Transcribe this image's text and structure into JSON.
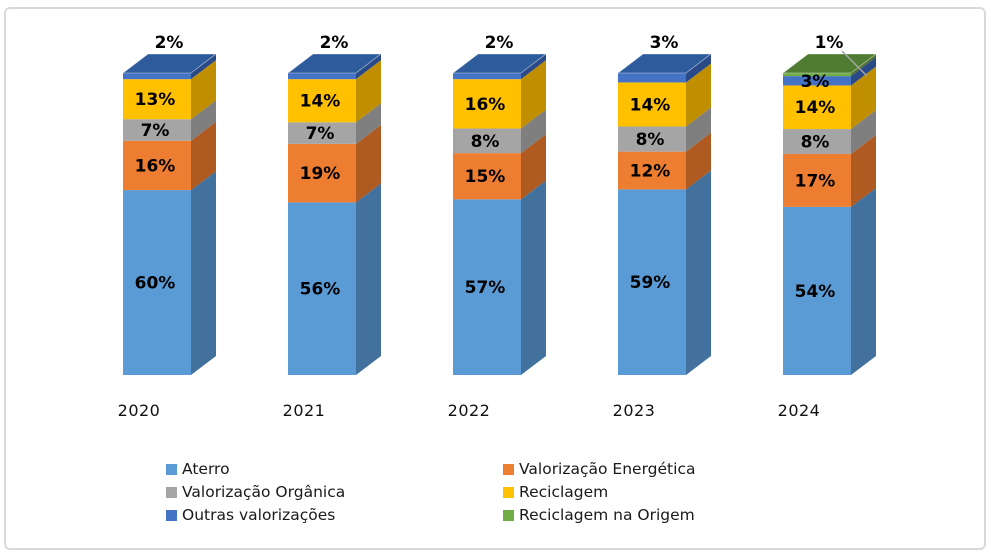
{
  "frame": {
    "border_color": "#D9D9D9",
    "background": "#FFFFFF"
  },
  "chart_data": {
    "type": "bar",
    "variant": "3d-stacked-percent-columns",
    "unit": "%",
    "title": "",
    "xlabel": "",
    "ylabel": "",
    "categories": [
      "2020",
      "2021",
      "2022",
      "2023",
      "2024"
    ],
    "series": [
      {
        "name": "Aterro",
        "color": "#5B9BD5",
        "side_color": "#41719C",
        "top_color": "#3D6B96",
        "values": [
          60,
          56,
          57,
          59,
          54
        ]
      },
      {
        "name": "Valorização Energética",
        "color": "#ED7D31",
        "side_color": "#AE5A21",
        "top_color": "#C96A29",
        "values": [
          16,
          19,
          15,
          12,
          17
        ]
      },
      {
        "name": "Valorização Orgânica",
        "color": "#A5A5A5",
        "side_color": "#7F7F7F",
        "top_color": "#8C8C8C",
        "values": [
          7,
          7,
          8,
          8,
          8
        ]
      },
      {
        "name": "Reciclagem",
        "color": "#FFC000",
        "side_color": "#BF8F00",
        "top_color": "#D9A400",
        "values": [
          13,
          14,
          16,
          14,
          14
        ]
      },
      {
        "name": "Outras valorizações",
        "color": "#4472C4",
        "side_color": "#2A4A87",
        "top_color": "#2E5B9B",
        "values": [
          2,
          2,
          2,
          3,
          3
        ]
      },
      {
        "name": "Reciclagem na Origem",
        "color": "#70AD47",
        "side_color": "#4F6F2E",
        "top_color": "#4F7B33",
        "values": [
          0,
          0,
          0,
          0,
          1
        ]
      }
    ],
    "data_labels": {
      "show": true,
      "suffix": "%",
      "color": "#000000"
    },
    "callout_categories": [
      "2024"
    ],
    "leader_line_color": "#A6A6A6",
    "legend": {
      "position": "bottom",
      "columns": [
        [
          "Aterro",
          "Valorização Orgânica",
          "Outras valorizações"
        ],
        [
          "Valorização Energética",
          "Reciclagem",
          "Reciclagem na Origem"
        ]
      ]
    },
    "axes": {
      "y_axis_visible": false,
      "gridlines": false
    }
  }
}
